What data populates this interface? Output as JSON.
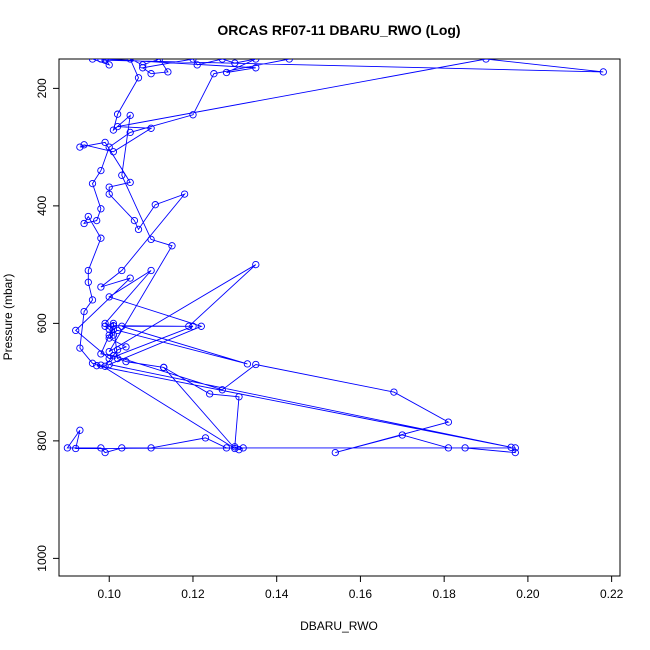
{
  "chart_data": {
    "type": "line",
    "title": "ORCAS RF07-11 DBARU_RWO (Log)",
    "xlabel": "DBARU_RWO",
    "ylabel": "Pressure (mbar)",
    "xlim": [
      0.088,
      0.222
    ],
    "ylim": [
      1030,
      150
    ],
    "y_reversed": true,
    "grid": false,
    "legend": "none",
    "x_ticks": [
      0.1,
      0.12,
      0.14,
      0.16,
      0.18,
      0.2,
      0.22
    ],
    "x_tick_labels": [
      "0.10",
      "0.12",
      "0.14",
      "0.16",
      "0.18",
      "0.20",
      "0.22"
    ],
    "y_ticks": [
      200,
      400,
      600,
      800,
      1000
    ],
    "y_tick_labels": [
      "200",
      "400",
      "600",
      "800",
      "1000"
    ],
    "series_color": "#0000ff",
    "points": [
      [
        0.143,
        150
      ],
      [
        0.125,
        175
      ],
      [
        0.12,
        245
      ],
      [
        0.105,
        275
      ],
      [
        0.1,
        300
      ],
      [
        0.098,
        340
      ],
      [
        0.096,
        362
      ],
      [
        0.098,
        405
      ],
      [
        0.097,
        425
      ],
      [
        0.094,
        430
      ],
      [
        0.095,
        418
      ],
      [
        0.098,
        455
      ],
      [
        0.095,
        510
      ],
      [
        0.095,
        530
      ],
      [
        0.096,
        560
      ],
      [
        0.094,
        580
      ],
      [
        0.093,
        642
      ],
      [
        0.096,
        668
      ],
      [
        0.099,
        673
      ],
      [
        0.102,
        645
      ],
      [
        0.104,
        640
      ],
      [
        0.1,
        625
      ],
      [
        0.101,
        620
      ],
      [
        0.1,
        610
      ],
      [
        0.099,
        605
      ],
      [
        0.101,
        600
      ],
      [
        0.102,
        660
      ],
      [
        0.104,
        665
      ],
      [
        0.113,
        675
      ],
      [
        0.124,
        720
      ],
      [
        0.131,
        725
      ],
      [
        0.13,
        810
      ],
      [
        0.131,
        815
      ],
      [
        0.132,
        812
      ],
      [
        0.092,
        813
      ],
      [
        0.093,
        782
      ],
      [
        0.09,
        812
      ],
      [
        0.098,
        812
      ],
      [
        0.099,
        820
      ],
      [
        0.103,
        812
      ],
      [
        0.11,
        812
      ],
      [
        0.123,
        795
      ],
      [
        0.128,
        812
      ],
      [
        0.197,
        812
      ],
      [
        0.197,
        820
      ],
      [
        0.185,
        812
      ],
      [
        0.181,
        812
      ],
      [
        0.17,
        790
      ],
      [
        0.154,
        820
      ],
      [
        0.181,
        768
      ],
      [
        0.168,
        717
      ],
      [
        0.135,
        670
      ],
      [
        0.127,
        713
      ],
      [
        0.101,
        655
      ],
      [
        0.098,
        652
      ],
      [
        0.101,
        604
      ],
      [
        0.119,
        605
      ],
      [
        0.135,
        500
      ],
      [
        0.1,
        648
      ],
      [
        0.115,
        468
      ],
      [
        0.11,
        457
      ],
      [
        0.103,
        348
      ],
      [
        0.105,
        246
      ],
      [
        0.101,
        271
      ],
      [
        0.102,
        244
      ],
      [
        0.107,
        182
      ],
      [
        0.105,
        150
      ],
      [
        0.108,
        160
      ],
      [
        0.112,
        150
      ],
      [
        0.114,
        172
      ],
      [
        0.11,
        175
      ],
      [
        0.108,
        165
      ],
      [
        0.12,
        150
      ],
      [
        0.121,
        160
      ],
      [
        0.127,
        150
      ],
      [
        0.13,
        157
      ],
      [
        0.135,
        150
      ],
      [
        0.128,
        173
      ],
      [
        0.135,
        165
      ],
      [
        0.099,
        150
      ],
      [
        0.1,
        160
      ],
      [
        0.096,
        150
      ],
      [
        0.098,
        150
      ],
      [
        0.099,
        152
      ],
      [
        0.218,
        172
      ],
      [
        0.19,
        150
      ],
      [
        0.102,
        265
      ],
      [
        0.11,
        268
      ],
      [
        0.101,
        308
      ],
      [
        0.094,
        296
      ],
      [
        0.093,
        300
      ],
      [
        0.099,
        292
      ],
      [
        0.105,
        360
      ],
      [
        0.1,
        368
      ],
      [
        0.1,
        380
      ],
      [
        0.106,
        425
      ],
      [
        0.107,
        440
      ],
      [
        0.111,
        398
      ],
      [
        0.118,
        380
      ],
      [
        0.103,
        510
      ],
      [
        0.098,
        538
      ],
      [
        0.105,
        523
      ],
      [
        0.092,
        612
      ],
      [
        0.1,
        660
      ],
      [
        0.12,
        605
      ],
      [
        0.103,
        605
      ],
      [
        0.133,
        669
      ],
      [
        0.102,
        612
      ],
      [
        0.1,
        620
      ],
      [
        0.101,
        610
      ],
      [
        0.099,
        600
      ],
      [
        0.11,
        510
      ],
      [
        0.1,
        555
      ],
      [
        0.122,
        605
      ],
      [
        0.1,
        670
      ],
      [
        0.196,
        811
      ],
      [
        0.097,
        672
      ],
      [
        0.098,
        671
      ],
      [
        0.13,
        813
      ],
      [
        0.113,
        675
      ]
    ]
  }
}
